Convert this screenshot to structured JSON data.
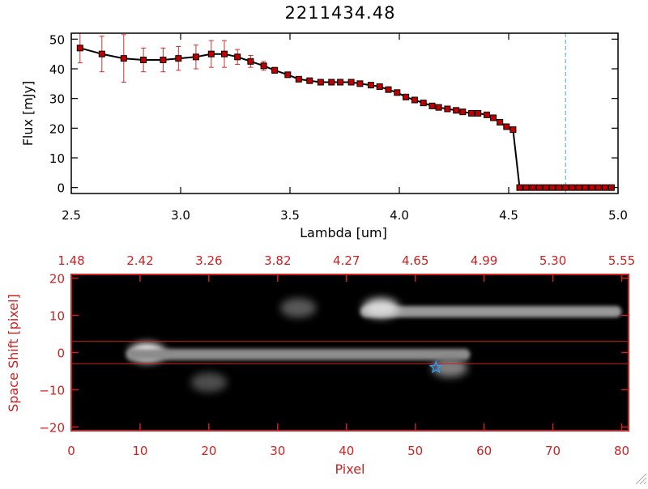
{
  "page": {
    "title": "2211434.48"
  },
  "chart_data": [
    {
      "type": "line",
      "title": "2211434.48",
      "xlabel": "Lambda [um]",
      "ylabel": "Flux [mJy]",
      "xlim": [
        2.5,
        5.0
      ],
      "ylim": [
        -2,
        52
      ],
      "x_ticks": [
        2.5,
        3.0,
        3.5,
        4.0,
        4.5,
        5.0
      ],
      "x_tick_labels": [
        "2.5",
        "3.0",
        "3.5",
        "4.0",
        "4.5",
        "5.0"
      ],
      "y_ticks": [
        0,
        10,
        20,
        30,
        40,
        50
      ],
      "y_tick_labels": [
        "0",
        "10",
        "20",
        "30",
        "40",
        "50"
      ],
      "line_color": "#000000",
      "marker_color": "#c00000",
      "errorbar_color": "#d03030",
      "reference_line": {
        "x": 4.76,
        "color": "#40a8d8",
        "style": "dashed"
      },
      "series": [
        {
          "x": [
            2.54,
            2.64,
            2.74,
            2.83,
            2.92,
            2.99,
            3.07,
            3.14,
            3.2,
            3.26,
            3.32,
            3.38,
            3.43,
            3.49,
            3.54,
            3.59,
            3.64,
            3.69,
            3.73,
            3.78,
            3.82,
            3.87,
            3.91,
            3.95,
            3.99,
            4.03,
            4.07,
            4.11,
            4.15,
            4.18,
            4.22,
            4.26,
            4.29,
            4.33,
            4.36,
            4.4,
            4.43,
            4.46,
            4.49,
            4.52,
            4.55,
            4.58,
            4.61,
            4.64,
            4.67,
            4.7,
            4.73,
            4.76,
            4.79,
            4.82,
            4.85,
            4.88,
            4.91,
            4.94,
            4.97
          ],
          "y": [
            47,
            45,
            43.5,
            43,
            43,
            43.5,
            44,
            45,
            45,
            44,
            42.5,
            41,
            39.5,
            38,
            36.5,
            36,
            35.5,
            35.5,
            35.5,
            35.5,
            35,
            34.5,
            34,
            33,
            32,
            30.5,
            29.5,
            28.5,
            27.5,
            27,
            26.5,
            26,
            25.5,
            25,
            25,
            24.5,
            23.5,
            22,
            20.5,
            19.5,
            0,
            0,
            0,
            0,
            0,
            0,
            0,
            0,
            0,
            0,
            0,
            0,
            0,
            0,
            0
          ],
          "yerr": [
            5,
            6,
            8,
            4,
            4,
            4,
            4,
            4.5,
            4.5,
            2.5,
            2,
            1.5,
            1,
            0.5,
            0.5,
            0.5,
            0.5,
            0.5,
            0.5,
            0.5,
            0.5,
            0.5,
            0.5,
            0.5,
            0.5,
            0.5,
            0.5,
            0.5,
            0.5,
            0.5,
            0.5,
            0.5,
            0.5,
            0.5,
            0.5,
            0.5,
            0.5,
            0.5,
            0.5,
            0.5,
            0,
            0,
            0,
            0,
            0,
            0,
            0,
            0,
            0,
            0,
            0,
            0,
            0,
            0,
            0
          ]
        }
      ]
    },
    {
      "type": "heatmap",
      "xlabel": "Pixel",
      "ylabel": "Space Shift [pixel]",
      "xlim": [
        0,
        81
      ],
      "ylim": [
        -21,
        21
      ],
      "x_ticks": [
        0,
        10,
        20,
        30,
        40,
        50,
        60,
        70,
        80
      ],
      "x_tick_labels": [
        "0",
        "10",
        "20",
        "30",
        "40",
        "50",
        "60",
        "70",
        "80"
      ],
      "y_ticks": [
        -20,
        -10,
        0,
        10,
        20
      ],
      "y_tick_labels": [
        "−20",
        "−10",
        "0",
        "10",
        "20"
      ],
      "top_ticks": [
        0,
        10,
        20,
        30,
        40,
        50,
        60,
        70,
        80
      ],
      "top_tick_labels": [
        "1.48",
        "2.42",
        "3.26",
        "3.82",
        "4.27",
        "4.65",
        "4.99",
        "5.30",
        "5.55"
      ],
      "axis_color": "#cc2222",
      "extraction_lines": [
        3,
        -3
      ],
      "star": {
        "x": 53,
        "y": -4,
        "color": "#3399ee"
      },
      "colormap": "grayscale",
      "features": [
        {
          "kind": "bright spot",
          "x": 11,
          "y": 0,
          "value": 1.0
        },
        {
          "kind": "horizontal trace",
          "x_range": [
            8,
            58
          ],
          "y": -0.5,
          "value": 0.55
        },
        {
          "kind": "upper trace",
          "x_range": [
            42,
            80
          ],
          "y": 11,
          "value": 0.6
        },
        {
          "kind": "upper bright spot",
          "x": 45,
          "y": 12,
          "value": 0.85
        },
        {
          "kind": "blob",
          "x": 33,
          "y": 12,
          "value": 0.35
        },
        {
          "kind": "blob",
          "x": 55,
          "y": -4,
          "value": 0.5
        },
        {
          "kind": "blob",
          "x": 20,
          "y": -8,
          "value": 0.3
        }
      ]
    }
  ]
}
